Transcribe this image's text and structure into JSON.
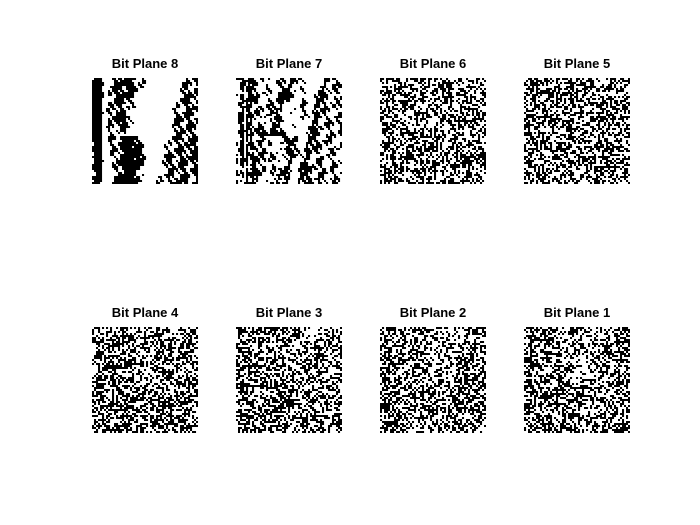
{
  "figure": {
    "panels": [
      {
        "title": "Bit Plane 8",
        "plane": 8
      },
      {
        "title": "Bit Plane 7",
        "plane": 7
      },
      {
        "title": "Bit Plane 6",
        "plane": 6
      },
      {
        "title": "Bit Plane 5",
        "plane": 5
      },
      {
        "title": "Bit Plane 4",
        "plane": 4
      },
      {
        "title": "Bit Plane 3",
        "plane": 3
      },
      {
        "title": "Bit Plane 2",
        "plane": 2
      },
      {
        "title": "Bit Plane 1",
        "plane": 1
      }
    ],
    "colors": {
      "on": "#ffffff",
      "off": "#000000",
      "background": "#ffffff"
    }
  }
}
